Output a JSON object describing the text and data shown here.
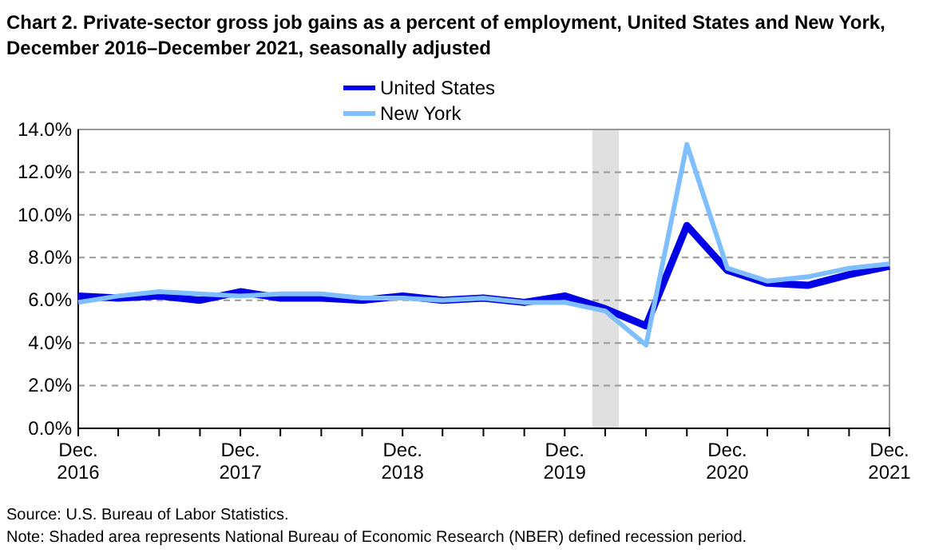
{
  "chart_data": {
    "type": "line",
    "title": "Chart 2. Private-sector gross job gains as a percent of employment, United States and New York, December 2016–December 2021, seasonally adjusted",
    "x": [
      "2016-12",
      "2017-03",
      "2017-06",
      "2017-09",
      "2017-12",
      "2018-03",
      "2018-06",
      "2018-09",
      "2018-12",
      "2019-03",
      "2019-06",
      "2019-09",
      "2019-12",
      "2020-03",
      "2020-06",
      "2020-09",
      "2020-12",
      "2021-03",
      "2021-06",
      "2021-09",
      "2021-12"
    ],
    "series": [
      {
        "name": "United States",
        "color": "#0000e6",
        "values": [
          6.2,
          6.1,
          6.2,
          6.0,
          6.4,
          6.1,
          6.1,
          6.0,
          6.2,
          6.0,
          6.1,
          5.9,
          6.2,
          5.6,
          4.8,
          9.5,
          7.4,
          6.8,
          6.7,
          7.2,
          7.6
        ]
      },
      {
        "name": "New York",
        "color": "#80bfff",
        "values": [
          5.9,
          6.2,
          6.4,
          6.3,
          6.2,
          6.3,
          6.3,
          6.1,
          6.1,
          6.0,
          6.1,
          5.9,
          5.9,
          5.5,
          3.9,
          13.3,
          7.5,
          6.9,
          7.1,
          7.5,
          7.7
        ]
      }
    ],
    "xlim": [
      "2016-12",
      "2021-12"
    ],
    "xticks": [
      {
        "value": "2016-12",
        "label": "Dec. 2016"
      },
      {
        "value": "2017-03",
        "label": null
      },
      {
        "value": "2017-06",
        "label": null
      },
      {
        "value": "2017-09",
        "label": null
      },
      {
        "value": "2017-12",
        "label": "Dec. 2017"
      },
      {
        "value": "2018-03",
        "label": null
      },
      {
        "value": "2018-06",
        "label": null
      },
      {
        "value": "2018-09",
        "label": null
      },
      {
        "value": "2018-12",
        "label": "Dec. 2018"
      },
      {
        "value": "2019-03",
        "label": null
      },
      {
        "value": "2019-06",
        "label": null
      },
      {
        "value": "2019-09",
        "label": null
      },
      {
        "value": "2019-12",
        "label": "Dec. 2019"
      },
      {
        "value": "2020-03",
        "label": null
      },
      {
        "value": "2020-06",
        "label": null
      },
      {
        "value": "2020-09",
        "label": null
      },
      {
        "value": "2020-12",
        "label": "Dec. 2020"
      },
      {
        "value": "2021-03",
        "label": null
      },
      {
        "value": "2021-06",
        "label": null
      },
      {
        "value": "2021-09",
        "label": null
      },
      {
        "value": "2021-12",
        "label": "Dec. 2021"
      }
    ],
    "ylim": [
      0,
      14
    ],
    "yticks": [
      {
        "value": 0,
        "label": "0.0%"
      },
      {
        "value": 2,
        "label": "2.0%"
      },
      {
        "value": 4,
        "label": "4.0%"
      },
      {
        "value": 6,
        "label": "6.0%"
      },
      {
        "value": 8,
        "label": "8.0%"
      },
      {
        "value": 10,
        "label": "10.0%"
      },
      {
        "value": 12,
        "label": "12.0%"
      },
      {
        "value": 14,
        "label": "14.0%"
      }
    ],
    "bands": [
      {
        "axis": "x",
        "from": "2020-02",
        "to": "2020-04",
        "color": "#e0e0e0"
      }
    ],
    "grid": "y",
    "legend": "top",
    "line_style": "solid",
    "marker": "none",
    "annotations": [
      "Source: U.S. Bureau of Labor Statistics.",
      "Note: Shaded area represents National Bureau of Economic Research (NBER) defined recession period."
    ]
  }
}
